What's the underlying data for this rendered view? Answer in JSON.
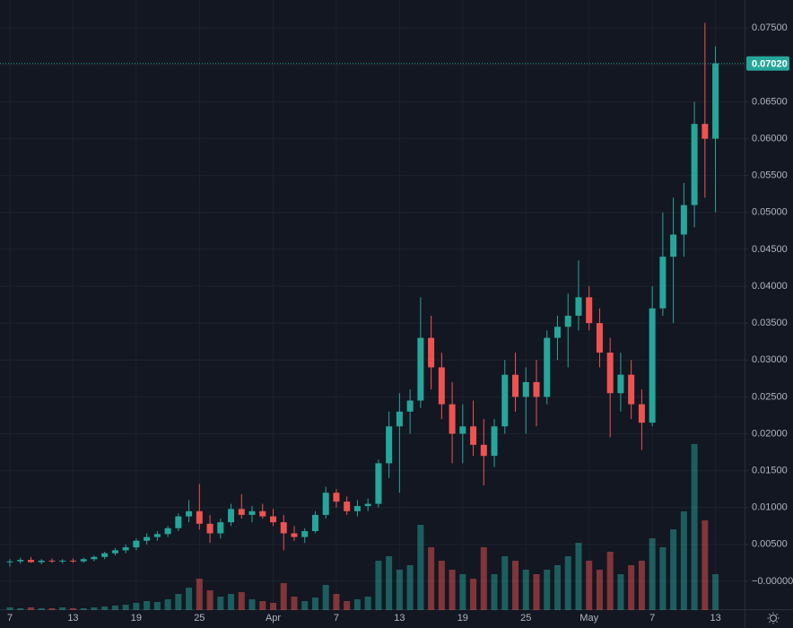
{
  "chart_data": {
    "type": "candlestick",
    "categories": [
      "7",
      null,
      null,
      null,
      null,
      null,
      "13",
      null,
      null,
      null,
      null,
      null,
      "19",
      null,
      null,
      null,
      null,
      null,
      "25",
      null,
      null,
      null,
      null,
      null,
      null,
      "Apr",
      null,
      null,
      null,
      null,
      null,
      "7",
      null,
      null,
      null,
      null,
      null,
      "13",
      null,
      null,
      null,
      null,
      null,
      "19",
      null,
      null,
      null,
      null,
      null,
      "25",
      null,
      null,
      null,
      null,
      null,
      "May",
      null,
      null,
      null,
      null,
      null,
      "7",
      null,
      null,
      null,
      null,
      null,
      "13"
    ],
    "open": [
      0.0026,
      0.0027,
      0.0029,
      0.0026,
      0.0028,
      0.0027,
      0.0028,
      0.0027,
      0.003,
      0.0033,
      0.0038,
      0.0042,
      0.0046,
      0.0055,
      0.006,
      0.0064,
      0.0072,
      0.0088,
      0.0095,
      0.0078,
      0.0065,
      0.008,
      0.0098,
      0.009,
      0.0095,
      0.0088,
      0.008,
      0.0065,
      0.006,
      0.0068,
      0.009,
      0.012,
      0.0108,
      0.0095,
      0.0102,
      0.0105,
      0.016,
      0.021,
      0.023,
      0.0245,
      0.033,
      0.029,
      0.024,
      0.02,
      0.021,
      0.0185,
      0.017,
      0.021,
      0.028,
      0.025,
      0.027,
      0.025,
      0.033,
      0.0345,
      0.036,
      0.0385,
      0.035,
      0.031,
      0.0255,
      0.028,
      0.024,
      0.0215,
      0.037,
      0.044,
      0.047,
      0.051,
      0.062,
      0.06
    ],
    "high": [
      0.003,
      0.0032,
      0.0033,
      0.003,
      0.0031,
      0.003,
      0.0031,
      0.0032,
      0.0035,
      0.004,
      0.0045,
      0.005,
      0.0058,
      0.0065,
      0.0068,
      0.0075,
      0.0092,
      0.011,
      0.0132,
      0.009,
      0.0085,
      0.0105,
      0.0118,
      0.0102,
      0.0105,
      0.0098,
      0.009,
      0.0075,
      0.0072,
      0.0095,
      0.0128,
      0.0125,
      0.0115,
      0.011,
      0.0112,
      0.0165,
      0.023,
      0.0255,
      0.026,
      0.0385,
      0.036,
      0.031,
      0.027,
      0.024,
      0.0245,
      0.022,
      0.022,
      0.03,
      0.031,
      0.029,
      0.03,
      0.034,
      0.036,
      0.039,
      0.0435,
      0.04,
      0.037,
      0.033,
      0.031,
      0.03,
      0.026,
      0.04,
      0.05,
      0.052,
      0.054,
      0.065,
      0.0757,
      0.0725
    ],
    "low": [
      0.002,
      0.0024,
      0.0025,
      0.0023,
      0.0025,
      0.0024,
      0.0025,
      0.0025,
      0.0027,
      0.003,
      0.0035,
      0.0038,
      0.0042,
      0.005,
      0.0055,
      0.006,
      0.0068,
      0.008,
      0.007,
      0.0052,
      0.0058,
      0.0075,
      0.0085,
      0.008,
      0.0085,
      0.0075,
      0.0042,
      0.0055,
      0.0052,
      0.0065,
      0.0085,
      0.01,
      0.009,
      0.0088,
      0.0095,
      0.01,
      0.014,
      0.012,
      0.02,
      0.0235,
      0.026,
      0.022,
      0.016,
      0.016,
      0.017,
      0.013,
      0.0155,
      0.02,
      0.023,
      0.02,
      0.021,
      0.024,
      0.03,
      0.029,
      0.034,
      0.034,
      0.029,
      0.0195,
      0.023,
      0.022,
      0.0178,
      0.021,
      0.036,
      0.035,
      0.044,
      0.048,
      0.052,
      0.05
    ],
    "close": [
      0.0027,
      0.0029,
      0.0026,
      0.0028,
      0.0027,
      0.0028,
      0.0027,
      0.003,
      0.0033,
      0.0038,
      0.0042,
      0.0046,
      0.0055,
      0.006,
      0.0064,
      0.0072,
      0.0088,
      0.0095,
      0.0078,
      0.0065,
      0.008,
      0.0098,
      0.009,
      0.0095,
      0.0088,
      0.008,
      0.0065,
      0.006,
      0.0068,
      0.009,
      0.012,
      0.0108,
      0.0095,
      0.0102,
      0.0105,
      0.016,
      0.021,
      0.023,
      0.0245,
      0.033,
      0.029,
      0.024,
      0.02,
      0.021,
      0.0185,
      0.017,
      0.021,
      0.028,
      0.025,
      0.027,
      0.025,
      0.033,
      0.0345,
      0.036,
      0.0385,
      0.035,
      0.031,
      0.0255,
      0.028,
      0.024,
      0.0215,
      0.037,
      0.044,
      0.047,
      0.051,
      0.062,
      0.06,
      0.0702
    ],
    "volume": [
      3,
      2,
      3,
      2,
      2,
      3,
      2,
      2,
      3,
      4,
      5,
      6,
      8,
      10,
      9,
      12,
      18,
      25,
      35,
      22,
      15,
      18,
      20,
      12,
      10,
      8,
      30,
      15,
      10,
      14,
      28,
      18,
      10,
      12,
      15,
      55,
      60,
      45,
      50,
      95,
      70,
      55,
      45,
      40,
      35,
      70,
      40,
      60,
      55,
      45,
      40,
      45,
      50,
      60,
      75,
      55,
      45,
      65,
      40,
      50,
      55,
      80,
      70,
      90,
      110,
      185,
      100,
      40
    ],
    "up_color": "#26a69a",
    "down_color": "#ef5350",
    "ylim": [
      -0.0039,
      0.0788
    ],
    "yticks": [
      {
        "value": 0,
        "label": "−0.00000"
      },
      {
        "value": 0.005,
        "label": "0.00500"
      },
      {
        "value": 0.01,
        "label": "0.01000"
      },
      {
        "value": 0.015,
        "label": "0.01500"
      },
      {
        "value": 0.02,
        "label": "0.02000"
      },
      {
        "value": 0.025,
        "label": "0.02500"
      },
      {
        "value": 0.03,
        "label": "0.03000"
      },
      {
        "value": 0.035,
        "label": "0.03500"
      },
      {
        "value": 0.04,
        "label": "0.04000"
      },
      {
        "value": 0.045,
        "label": "0.04500"
      },
      {
        "value": 0.05,
        "label": "0.05000"
      },
      {
        "value": 0.055,
        "label": "0.05500"
      },
      {
        "value": 0.06,
        "label": "0.06000"
      },
      {
        "value": 0.065,
        "label": "0.06500"
      },
      {
        "value": 0.07,
        "label": "0.07000"
      },
      {
        "value": 0.075,
        "label": "0.07500"
      }
    ],
    "last_price": {
      "value": 0.0702,
      "label": "0.07020"
    },
    "grid": true
  }
}
